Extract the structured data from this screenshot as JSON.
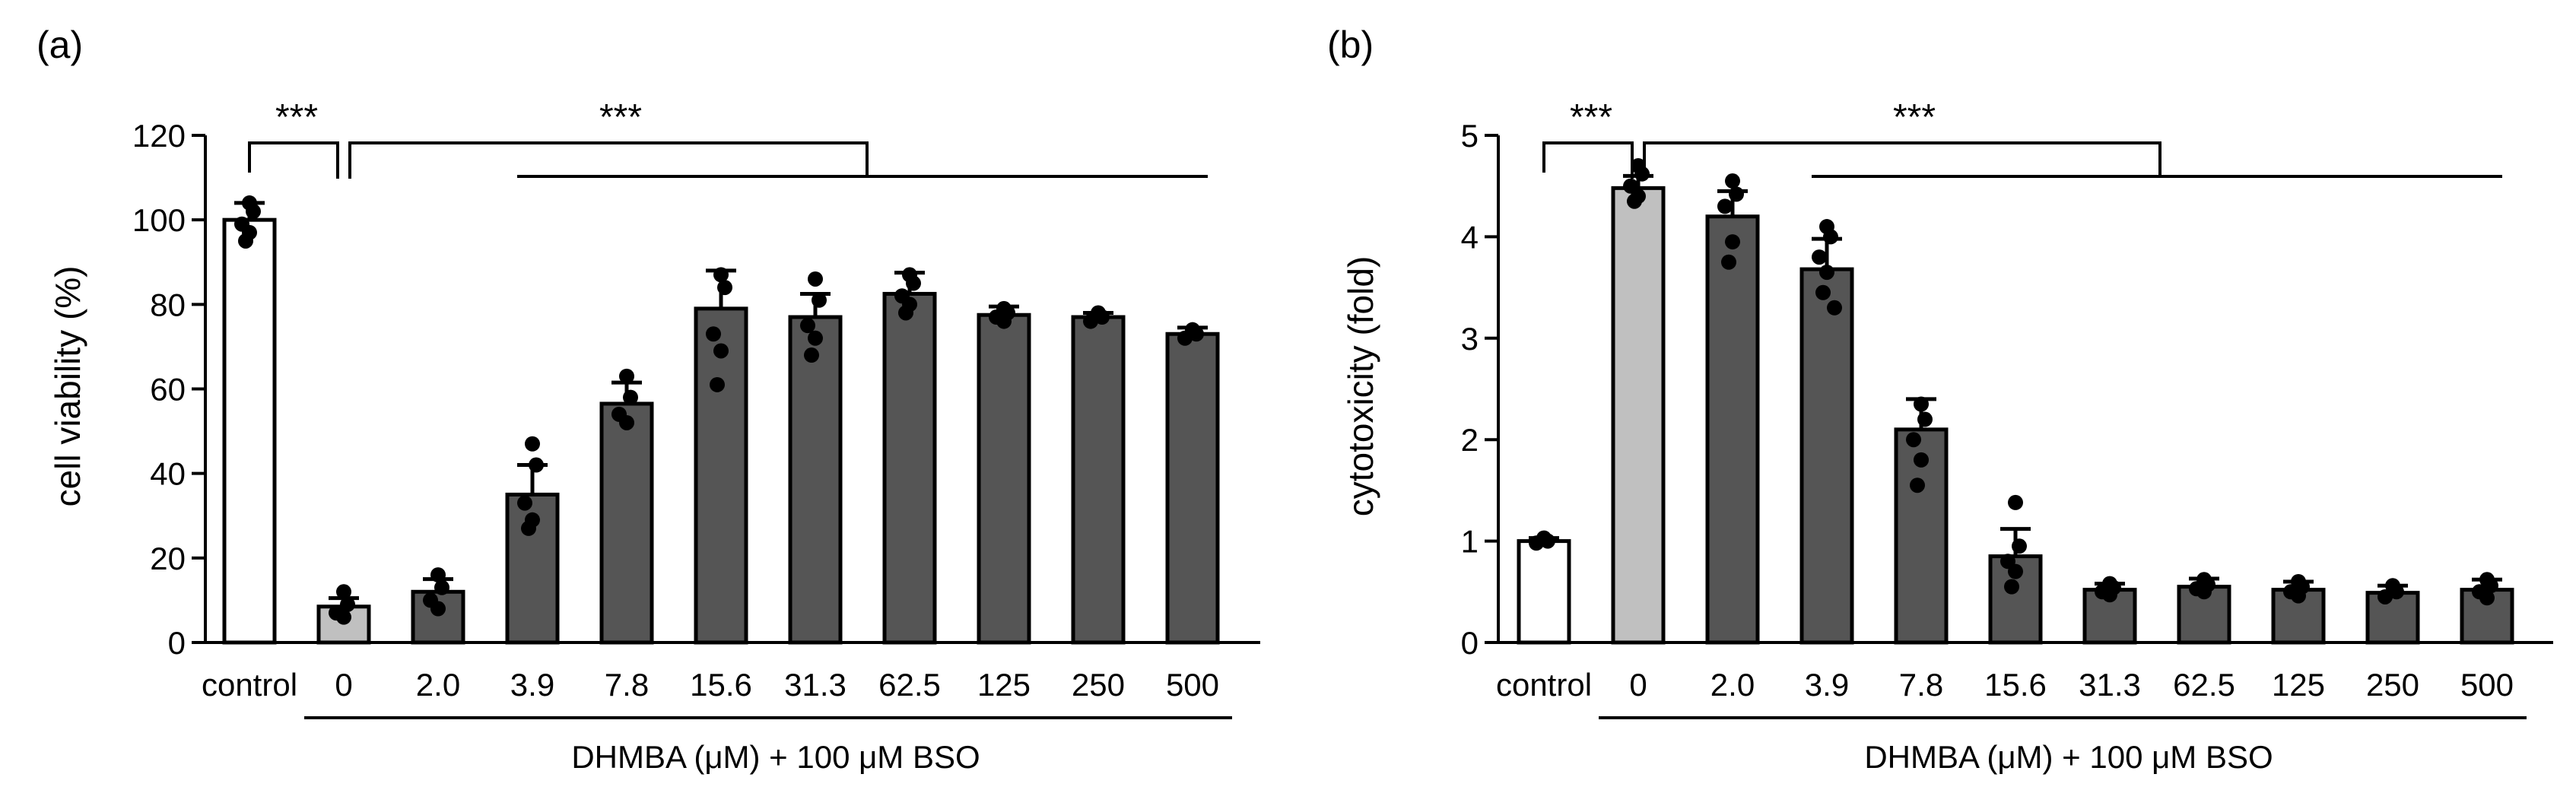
{
  "figure": {
    "panel_labels": [
      "(a)",
      "(b)"
    ]
  },
  "colors": {
    "control": "#ffffff",
    "zero": "#c0c0c0",
    "treated": "#555555",
    "edge": "#000000"
  },
  "chart_data": [
    {
      "type": "bar",
      "panel": "(a)",
      "ylabel": "cell viability (%)",
      "xlabel": "DHMBA (μM) + 100 μM BSO",
      "categories": [
        "control",
        "0",
        "2.0",
        "3.9",
        "7.8",
        "15.6",
        "31.3",
        "62.5",
        "125",
        "250",
        "500"
      ],
      "values": [
        100,
        8.5,
        12,
        35,
        56.5,
        79,
        77,
        82.5,
        77.5,
        77,
        73
      ],
      "errors": [
        4,
        2,
        3,
        7,
        5,
        9,
        5.5,
        5,
        2,
        1,
        1.5
      ],
      "points": [
        [
          104,
          102,
          99,
          97,
          95
        ],
        [
          12,
          9,
          7,
          6
        ],
        [
          16,
          13,
          10,
          8
        ],
        [
          47,
          42,
          33,
          29,
          27
        ],
        [
          63,
          58,
          54,
          52
        ],
        [
          87,
          84,
          73,
          69,
          61
        ],
        [
          86,
          81,
          75,
          72,
          68
        ],
        [
          87,
          85,
          82,
          80,
          78
        ],
        [
          79,
          78,
          77,
          76
        ],
        [
          78,
          77,
          76
        ],
        [
          74,
          73,
          72
        ]
      ],
      "ylim": [
        0,
        120
      ],
      "yticks": [
        0,
        20,
        40,
        60,
        80,
        100,
        120
      ],
      "bar_colors": [
        "control",
        "zero",
        "treated",
        "treated",
        "treated",
        "treated",
        "treated",
        "treated",
        "treated",
        "treated",
        "treated"
      ],
      "significance": [
        {
          "label": "***",
          "from": "control",
          "to": "0"
        },
        {
          "label": "***",
          "from": "0",
          "to": "3.9–500"
        }
      ]
    },
    {
      "type": "bar",
      "panel": "(b)",
      "ylabel": "cytotoxicity (fold)",
      "xlabel": "DHMBA (μM) + 100 μM BSO",
      "categories": [
        "control",
        "0",
        "2.0",
        "3.9",
        "7.8",
        "15.6",
        "31.3",
        "62.5",
        "125",
        "250",
        "500"
      ],
      "values": [
        1.0,
        4.48,
        4.2,
        3.68,
        2.1,
        0.85,
        0.52,
        0.55,
        0.52,
        0.49,
        0.52
      ],
      "errors": [
        0.03,
        0.12,
        0.25,
        0.3,
        0.3,
        0.27,
        0.06,
        0.08,
        0.08,
        0.07,
        0.1
      ],
      "points": [
        [
          1.03,
          1.0,
          0.98
        ],
        [
          4.7,
          4.62,
          4.5,
          4.4,
          4.35
        ],
        [
          4.55,
          4.42,
          4.3,
          3.95,
          3.75
        ],
        [
          4.1,
          4.0,
          3.8,
          3.65,
          3.45,
          3.3
        ],
        [
          2.35,
          2.2,
          2.0,
          1.8,
          1.55
        ],
        [
          1.38,
          0.95,
          0.8,
          0.7,
          0.55
        ],
        [
          0.58,
          0.54,
          0.5,
          0.47
        ],
        [
          0.62,
          0.57,
          0.53,
          0.5
        ],
        [
          0.6,
          0.55,
          0.5,
          0.46
        ],
        [
          0.56,
          0.5,
          0.45
        ],
        [
          0.62,
          0.56,
          0.5,
          0.44
        ]
      ],
      "ylim": [
        0,
        5
      ],
      "yticks": [
        0,
        1,
        2,
        3,
        4,
        5
      ],
      "bar_colors": [
        "control",
        "zero",
        "treated",
        "treated",
        "treated",
        "treated",
        "treated",
        "treated",
        "treated",
        "treated",
        "treated"
      ],
      "significance": [
        {
          "label": "***",
          "from": "control",
          "to": "0"
        },
        {
          "label": "***",
          "from": "0",
          "to": "3.9–500"
        }
      ]
    }
  ]
}
